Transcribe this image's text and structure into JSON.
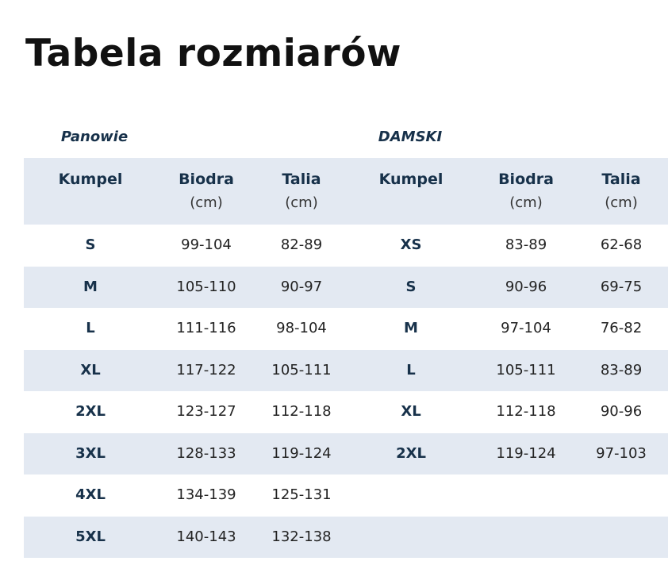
{
  "title": "Tabela rozmiarów",
  "sections": {
    "men": "Panowie",
    "women": "DAMSKI"
  },
  "headers": [
    {
      "label": "Kumpel",
      "unit": ""
    },
    {
      "label": "Biodra",
      "unit": "(cm)"
    },
    {
      "label": "Talia",
      "unit": "(cm)"
    },
    {
      "label": "Kumpel",
      "unit": ""
    },
    {
      "label": "Biodra",
      "unit": "(cm)"
    },
    {
      "label": "Talia",
      "unit": "(cm)"
    }
  ],
  "rows": [
    [
      "S",
      "99-104",
      "82-89",
      "XS",
      "83-89",
      "62-68"
    ],
    [
      "M",
      "105-110",
      "90-97",
      "S",
      "90-96",
      "69-75"
    ],
    [
      "L",
      "111-116",
      "98-104",
      "M",
      "97-104",
      "76-82"
    ],
    [
      "XL",
      "117-122",
      "105-111",
      "L",
      "105-111",
      "83-89"
    ],
    [
      "2XL",
      "123-127",
      "112-118",
      "XL",
      "112-118",
      "90-96"
    ],
    [
      "3XL",
      "128-133",
      "119-124",
      "2XL",
      "119-124",
      "97-103"
    ],
    [
      "4XL",
      "134-139",
      "125-131",
      "",
      "",
      ""
    ],
    [
      "5XL",
      "140-143",
      "132-138",
      "",
      "",
      ""
    ]
  ],
  "colors": {
    "text": "#17314a",
    "shade": "#e3e9f2"
  }
}
